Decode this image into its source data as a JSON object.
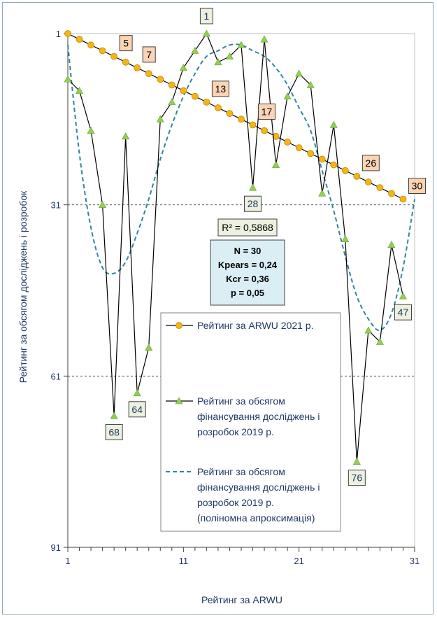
{
  "chart_data": {
    "type": "line",
    "xlabel": "Рейтинг за ARWU",
    "ylabel": "Рейтинг за обсягом досліджень і розробок",
    "xlim": [
      1,
      31
    ],
    "ylim": [
      1,
      91
    ],
    "y_reversed": true,
    "x_ticks": [
      "1",
      "11",
      "21",
      "31"
    ],
    "y_ticks": [
      "1",
      "31",
      "61",
      "91"
    ],
    "grid": "horizontal dashed at 31 and 61",
    "legend_position": "bottom-center inside plot",
    "series": [
      {
        "name": "Рейтинг за ARWU 2021 р.",
        "color": "#F5B417",
        "marker": "circle",
        "x": [
          1,
          2,
          3,
          4,
          5,
          6,
          7,
          8,
          9,
          10,
          11,
          12,
          13,
          14,
          15,
          16,
          17,
          18,
          19,
          20,
          21,
          22,
          23,
          24,
          25,
          26,
          27,
          28,
          29,
          30
        ],
        "y": [
          1,
          2,
          3,
          4,
          5,
          6,
          7,
          8,
          9,
          10,
          11,
          12,
          13,
          14,
          15,
          16,
          17,
          18,
          19,
          20,
          21,
          22,
          23,
          24,
          25,
          26,
          27,
          28,
          29,
          30
        ]
      },
      {
        "name": "Рейтинг за обсягом фінансування досліджень і розробок 2019 р.",
        "color": "#92D050",
        "marker": "triangle",
        "x": [
          1,
          2,
          3,
          4,
          5,
          6,
          7,
          8,
          9,
          10,
          11,
          12,
          13,
          14,
          15,
          16,
          17,
          18,
          19,
          20,
          21,
          22,
          23,
          24,
          25,
          26,
          27,
          28,
          29,
          30
        ],
        "y": [
          9,
          11,
          18,
          31,
          68,
          19,
          64,
          56,
          16,
          13,
          7,
          4,
          1,
          6,
          5,
          3,
          28,
          2,
          24,
          12,
          8,
          10,
          29,
          17,
          37,
          76,
          53,
          55,
          38,
          47
        ]
      },
      {
        "name": "Рейтинг за обсягом фінансування досліджень і розробок 2019 р. (поліномна апроксимація)",
        "color": "#31859C",
        "style": "dashed",
        "x": [
          1,
          2,
          3,
          4,
          5,
          6,
          7,
          8,
          9,
          10,
          11,
          12,
          13,
          14,
          15,
          16,
          17,
          18,
          19,
          20,
          21,
          22,
          23,
          24,
          25,
          26,
          27,
          28,
          29,
          30,
          31
        ],
        "y": [
          3,
          22,
          35,
          42,
          43,
          41,
          36,
          30,
          23,
          17,
          12,
          8,
          5,
          4,
          3,
          3,
          4,
          5,
          7,
          10,
          14,
          18,
          25,
          32,
          40,
          47,
          51,
          53,
          50,
          42,
          30
        ]
      }
    ],
    "point_labels": [
      {
        "series": 0,
        "x": 5,
        "text": "5"
      },
      {
        "series": 0,
        "x": 7,
        "text": "7"
      },
      {
        "series": 0,
        "x": 13,
        "text": "13"
      },
      {
        "series": 0,
        "x": 17,
        "text": "17"
      },
      {
        "series": 0,
        "x": 26,
        "text": "26"
      },
      {
        "series": 0,
        "x": 30,
        "text": "30"
      },
      {
        "series": 1,
        "x": 13,
        "text": "1",
        "pos": "above"
      },
      {
        "series": 1,
        "x": 17,
        "text": "28",
        "pos": "below"
      },
      {
        "series": 1,
        "x": 5,
        "text": "68",
        "pos": "below"
      },
      {
        "series": 1,
        "x": 7,
        "text": "64",
        "pos": "below"
      },
      {
        "series": 1,
        "x": 26,
        "text": "76",
        "pos": "below"
      },
      {
        "series": 1,
        "x": 30,
        "text": "47",
        "pos": "below"
      }
    ],
    "annotations": {
      "r2": "R² = 0,5868",
      "stats": [
        "N = 30",
        "Kpears = 0,24",
        "Kcr = 0,36",
        "p = 0,05"
      ]
    }
  },
  "legend": [
    {
      "lines": [
        "Рейтинг за ARWU 2021 р."
      ]
    },
    {
      "lines": [
        "Рейтинг за обсягом",
        "фінансування досліджень і",
        "розробок 2019 р."
      ]
    },
    {
      "lines": [
        "Рейтинг за обсягом",
        "фінансування досліджень і",
        "розробок 2019 р.",
        "(поліномна апроксимація)"
      ]
    }
  ]
}
